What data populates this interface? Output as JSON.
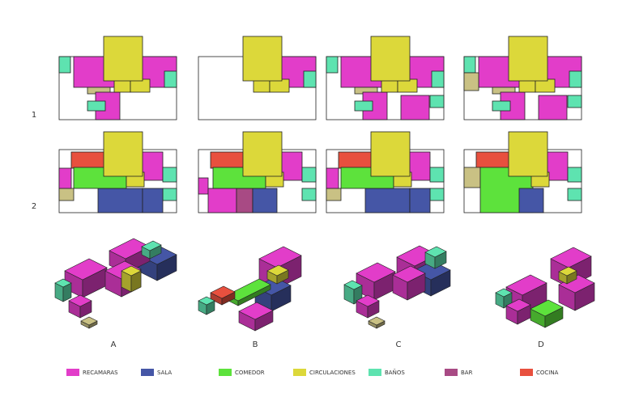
{
  "rows": [
    "1",
    "2"
  ],
  "columns": [
    "A",
    "B",
    "C",
    "D"
  ],
  "legend": [
    {
      "label": "RECAMARAS",
      "color": "#e23dc9"
    },
    {
      "label": "SALA",
      "color": "#4556a6"
    },
    {
      "label": "COMEDOR",
      "color": "#5de23c"
    },
    {
      "label": "CIRCULACIONES",
      "color": "#dcd83a"
    },
    {
      "label": "BAÑOS",
      "color": "#5ee3b0"
    },
    {
      "label": "BAR",
      "color": "#a84a84"
    },
    {
      "label": "COCINA",
      "color": "#e8503e"
    }
  ]
}
